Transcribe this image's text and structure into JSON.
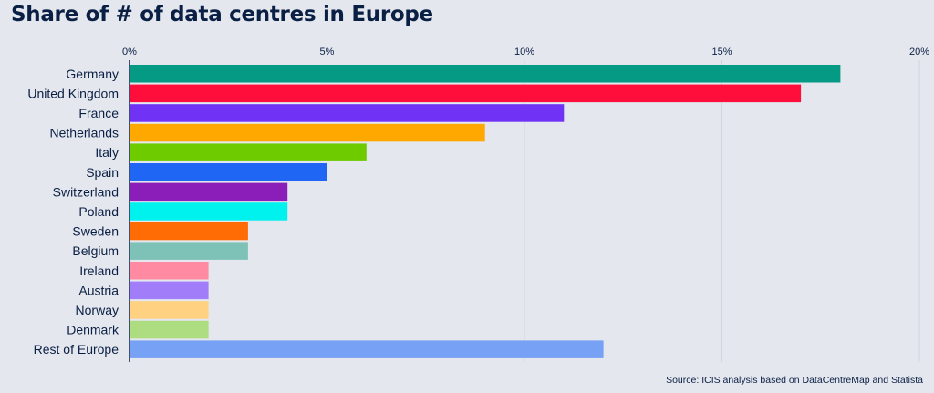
{
  "title": "Share of # of data centres in Europe",
  "source": "Source: ICIS analysis based on DataCentreMap and Statista",
  "chart_data": {
    "type": "bar",
    "orientation": "horizontal",
    "title": "Share of # of data centres in Europe",
    "xlabel": "",
    "ylabel": "",
    "xlim": [
      0,
      20
    ],
    "x_ticks": [
      "0%",
      "5%",
      "10%",
      "15%",
      "20%"
    ],
    "x_tick_values": [
      0,
      5,
      10,
      15,
      20
    ],
    "x_axis_position": "top",
    "grid": true,
    "legend": "none",
    "categories": [
      "Germany",
      "United Kingdom",
      "France",
      "Netherlands",
      "Italy",
      "Spain",
      "Switzerland",
      "Poland",
      "Sweden",
      "Belgium",
      "Ireland",
      "Austria",
      "Norway",
      "Denmark",
      "Rest of Europe"
    ],
    "values": [
      18,
      17,
      11,
      9,
      6,
      5,
      4,
      4,
      3,
      3,
      2,
      2,
      2,
      2,
      12
    ],
    "colors": [
      "#049a84",
      "#ff0e3c",
      "#7033f5",
      "#ffa800",
      "#6ecb00",
      "#2066f5",
      "#8b1eb8",
      "#00f2ee",
      "#ff6b05",
      "#7ec1b6",
      "#ff8aa2",
      "#a17dfa",
      "#ffd181",
      "#addd80",
      "#77a1f5"
    ]
  }
}
